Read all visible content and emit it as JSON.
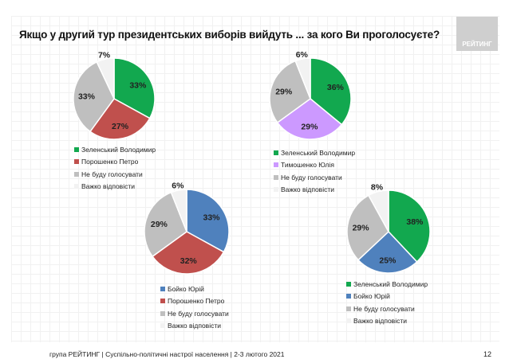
{
  "title": "Якщо у другий тур президентських виборів вийдуть ... за кого Ви проголосуєте?",
  "logo": "РЕЙТИНГ",
  "footer": "група РЕЙТИНГ | Суспільно-політичні настрої населення  | 2-3 лютого 2021",
  "page_number": "12",
  "chart_data": [
    {
      "type": "pie",
      "categories": [
        "Зеленський Володимир",
        "Порошенко Петро",
        "Не буду голосувати",
        "Важко відповісти"
      ],
      "values": [
        33,
        27,
        33,
        7
      ],
      "labels": [
        "33%",
        "27%",
        "33%",
        "7%"
      ],
      "colors": [
        "#12a84f",
        "#c0504d",
        "#bfbfbf",
        "#f2f2f2"
      ]
    },
    {
      "type": "pie",
      "categories": [
        "Зеленський Володимир",
        "Тимошенко Юлія",
        "Не буду голосувати",
        "Важко відповісти"
      ],
      "values": [
        36,
        29,
        29,
        6
      ],
      "labels": [
        "36%",
        "29%",
        "29%",
        "6%"
      ],
      "colors": [
        "#12a84f",
        "#cc99ff",
        "#bfbfbf",
        "#f2f2f2"
      ]
    },
    {
      "type": "pie",
      "categories": [
        "Бойко Юрій",
        "Порошенко Петро",
        "Не буду голосувати",
        "Важко відповісти"
      ],
      "values": [
        33,
        32,
        29,
        6
      ],
      "labels": [
        "33%",
        "32%",
        "29%",
        "6%"
      ],
      "colors": [
        "#4f81bd",
        "#c0504d",
        "#bfbfbf",
        "#f2f2f2"
      ]
    },
    {
      "type": "pie",
      "categories": [
        "Зеленський Володимир",
        "Бойко Юрій",
        "Не буду голосувати",
        "Важко відповісти"
      ],
      "values": [
        38,
        25,
        29,
        8
      ],
      "labels": [
        "38%",
        "25%",
        "29%",
        "8%"
      ],
      "colors": [
        "#12a84f",
        "#4f81bd",
        "#bfbfbf",
        "#f2f2f2"
      ]
    }
  ]
}
